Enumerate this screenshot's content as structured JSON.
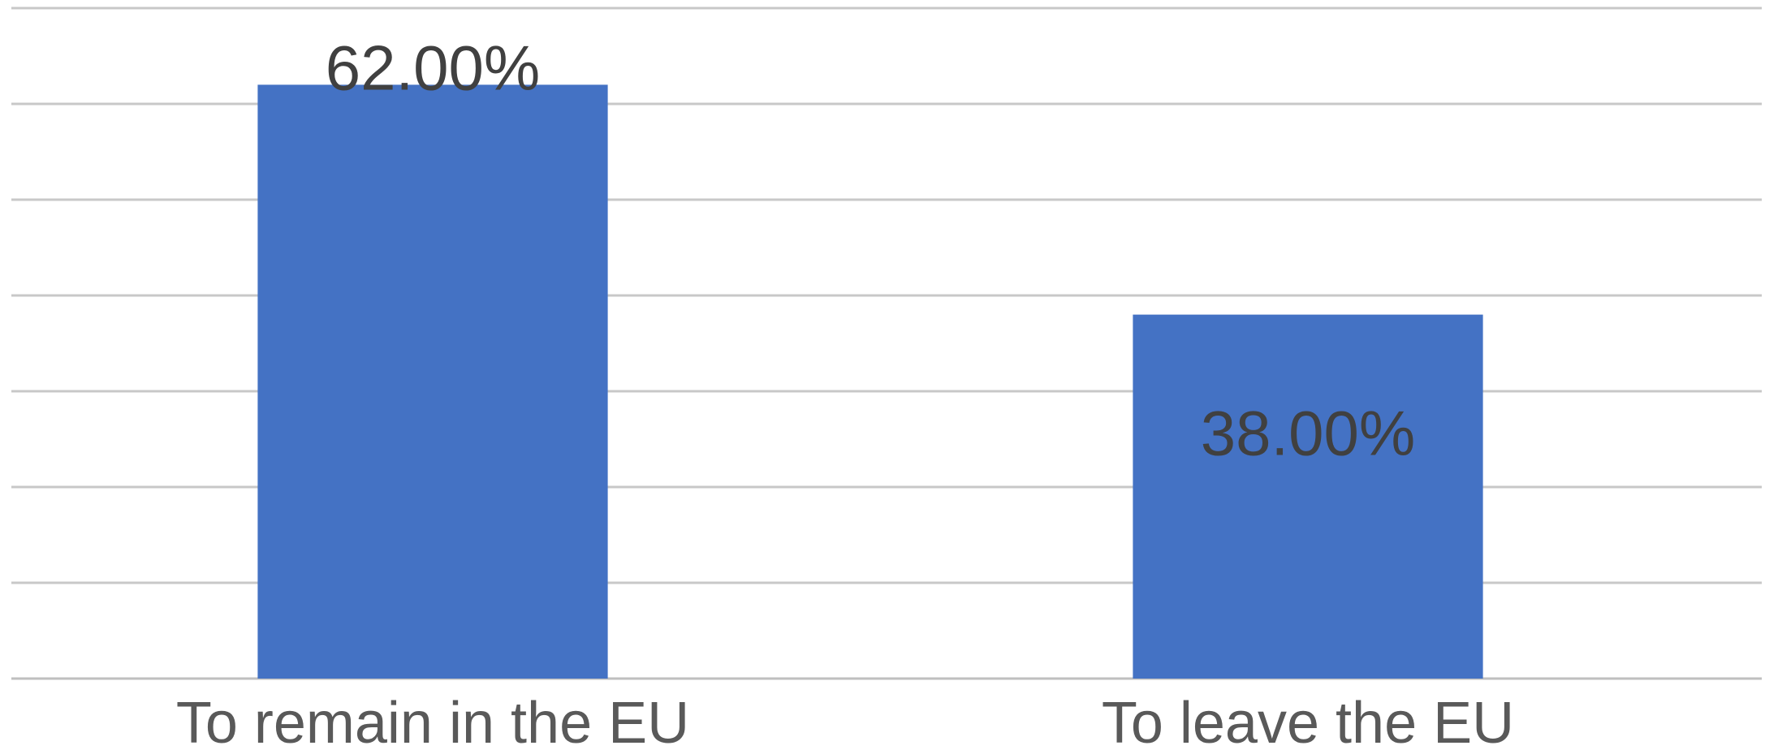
{
  "chart_data": {
    "type": "bar",
    "categories": [
      "To remain in the EU",
      "To leave the EU"
    ],
    "values": [
      62.0,
      38.0
    ],
    "data_labels": [
      "62.00%",
      "38.00%"
    ],
    "title": "",
    "xlabel": "",
    "ylabel": "",
    "ylim": [
      0,
      70
    ],
    "grid": true,
    "legend": "none",
    "colors": {
      "bar": "#4472c4",
      "grid": "#c8c8c8"
    }
  }
}
